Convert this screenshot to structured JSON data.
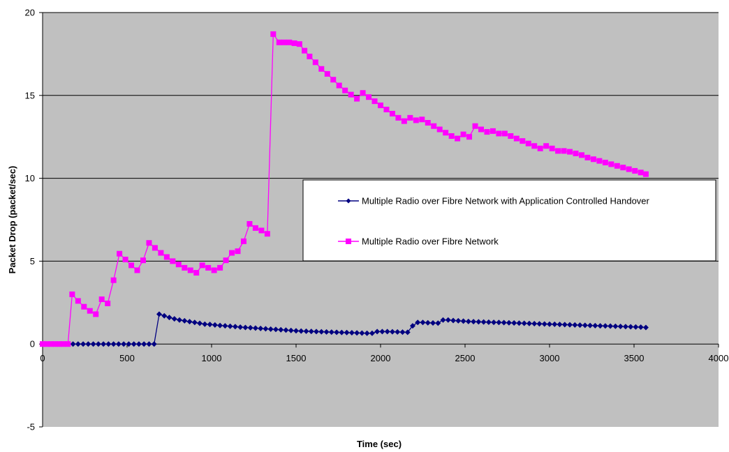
{
  "chart_data": {
    "type": "line",
    "title": "",
    "xlabel": "Time (sec)",
    "ylabel": "Packet Drop (packet/sec)",
    "xlim": [
      0,
      4000
    ],
    "ylim": [
      -5,
      20
    ],
    "x_ticks": [
      "0",
      "500",
      "1000",
      "1500",
      "2000",
      "2500",
      "3000",
      "3500",
      "4000"
    ],
    "y_ticks": [
      "20",
      "15",
      "10",
      "5",
      "0",
      "-5"
    ],
    "grid": "horizontal major gridlines",
    "legend_position": "right, inside plot",
    "plot_area_color": "#c0c0c0",
    "series": [
      {
        "name": "Multiple Radio over Fibre Network with Application Controlled Handover",
        "color": "#000080",
        "marker": "diamond",
        "x": [
          0,
          25,
          50,
          75,
          100,
          125,
          150,
          180,
          210,
          240,
          270,
          300,
          330,
          360,
          390,
          420,
          450,
          480,
          510,
          540,
          570,
          600,
          630,
          660,
          690,
          720,
          750,
          780,
          810,
          840,
          870,
          900,
          930,
          960,
          990,
          1020,
          1050,
          1080,
          1110,
          1140,
          1170,
          1200,
          1230,
          1260,
          1290,
          1320,
          1350,
          1380,
          1410,
          1440,
          1470,
          1500,
          1530,
          1560,
          1590,
          1620,
          1650,
          1680,
          1710,
          1740,
          1770,
          1800,
          1830,
          1860,
          1890,
          1920,
          1950,
          1980,
          2010,
          2040,
          2070,
          2100,
          2130,
          2160,
          2190,
          2220,
          2250,
          2280,
          2310,
          2340,
          2370,
          2400,
          2430,
          2460,
          2490,
          2520,
          2550,
          2580,
          2610,
          2640,
          2670,
          2700,
          2730,
          2760,
          2790,
          2820,
          2850,
          2880,
          2910,
          2940,
          2970,
          3000,
          3030,
          3060,
          3090,
          3120,
          3150,
          3180,
          3210,
          3240,
          3270,
          3300,
          3330,
          3360,
          3390,
          3420,
          3450,
          3480,
          3510,
          3540,
          3570
        ],
        "values": [
          0,
          0,
          0,
          0,
          0,
          0,
          0,
          0,
          0,
          0,
          0,
          0,
          0,
          0,
          0,
          0,
          0,
          0,
          0,
          0,
          0,
          0,
          0,
          0,
          1.8,
          1.7,
          1.6,
          1.52,
          1.45,
          1.4,
          1.35,
          1.3,
          1.25,
          1.2,
          1.18,
          1.15,
          1.12,
          1.1,
          1.07,
          1.05,
          1.02,
          1.0,
          0.98,
          0.96,
          0.94,
          0.92,
          0.9,
          0.88,
          0.86,
          0.84,
          0.82,
          0.8,
          0.78,
          0.77,
          0.76,
          0.75,
          0.74,
          0.73,
          0.72,
          0.71,
          0.7,
          0.69,
          0.68,
          0.67,
          0.66,
          0.65,
          0.65,
          0.75,
          0.75,
          0.75,
          0.74,
          0.73,
          0.72,
          0.71,
          1.1,
          1.3,
          1.3,
          1.28,
          1.27,
          1.26,
          1.45,
          1.45,
          1.42,
          1.4,
          1.38,
          1.36,
          1.35,
          1.34,
          1.33,
          1.32,
          1.31,
          1.3,
          1.29,
          1.28,
          1.27,
          1.26,
          1.25,
          1.24,
          1.23,
          1.22,
          1.21,
          1.2,
          1.19,
          1.18,
          1.17,
          1.16,
          1.15,
          1.14,
          1.13,
          1.12,
          1.11,
          1.1,
          1.09,
          1.08,
          1.07,
          1.06,
          1.05,
          1.04,
          1.03,
          1.02,
          1.0
        ]
      },
      {
        "name": "Multiple Radio over Fibre Network",
        "color": "#ff00ff",
        "marker": "square",
        "x": [
          0,
          25,
          50,
          75,
          100,
          125,
          150,
          175,
          210,
          245,
          280,
          315,
          350,
          385,
          420,
          455,
          490,
          525,
          560,
          595,
          630,
          665,
          700,
          735,
          770,
          805,
          840,
          875,
          910,
          945,
          980,
          1015,
          1050,
          1085,
          1120,
          1155,
          1190,
          1225,
          1260,
          1295,
          1330,
          1365,
          1400,
          1430,
          1460,
          1490,
          1520,
          1550,
          1580,
          1615,
          1650,
          1685,
          1720,
          1755,
          1790,
          1825,
          1860,
          1895,
          1930,
          1965,
          2000,
          2035,
          2070,
          2105,
          2140,
          2175,
          2210,
          2245,
          2280,
          2315,
          2350,
          2385,
          2420,
          2455,
          2490,
          2525,
          2560,
          2595,
          2630,
          2665,
          2700,
          2735,
          2770,
          2805,
          2840,
          2875,
          2910,
          2945,
          2980,
          3015,
          3050,
          3085,
          3120,
          3155,
          3190,
          3225,
          3260,
          3295,
          3330,
          3365,
          3400,
          3435,
          3470,
          3505,
          3540,
          3570
        ],
        "values": [
          0,
          0,
          0,
          0,
          0,
          0,
          0,
          3.0,
          2.6,
          2.25,
          2.0,
          1.8,
          2.7,
          2.45,
          3.85,
          5.45,
          5.1,
          4.75,
          4.45,
          5.05,
          6.1,
          5.8,
          5.5,
          5.25,
          5.0,
          4.8,
          4.6,
          4.45,
          4.3,
          4.75,
          4.6,
          4.45,
          4.6,
          5.05,
          5.5,
          5.6,
          6.2,
          7.25,
          7.0,
          6.85,
          6.65,
          18.7,
          18.2,
          18.2,
          18.2,
          18.15,
          18.1,
          17.7,
          17.35,
          17.0,
          16.6,
          16.3,
          15.95,
          15.6,
          15.3,
          15.05,
          14.8,
          15.15,
          14.9,
          14.65,
          14.4,
          14.15,
          13.9,
          13.65,
          13.45,
          13.65,
          13.5,
          13.55,
          13.35,
          13.15,
          12.95,
          12.75,
          12.55,
          12.4,
          12.65,
          12.5,
          13.15,
          12.95,
          12.8,
          12.85,
          12.7,
          12.7,
          12.55,
          12.4,
          12.25,
          12.1,
          11.95,
          11.8,
          11.95,
          11.8,
          11.65,
          11.65,
          11.6,
          11.5,
          11.4,
          11.25,
          11.15,
          11.05,
          10.95,
          10.85,
          10.75,
          10.65,
          10.55,
          10.45,
          10.35,
          10.25
        ]
      }
    ]
  }
}
